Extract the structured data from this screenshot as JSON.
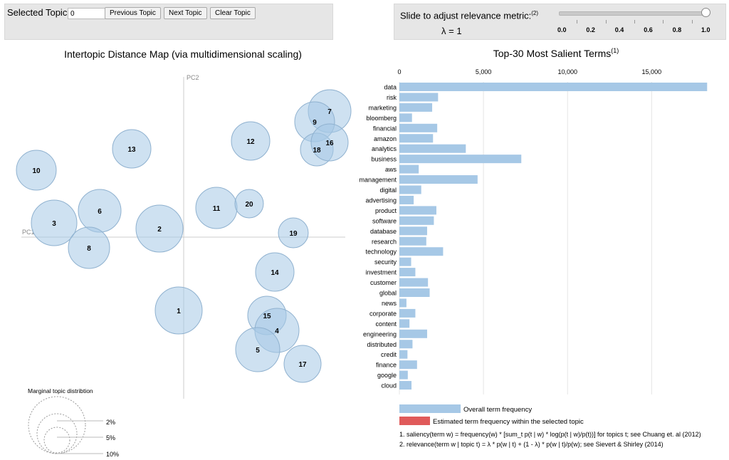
{
  "topic_controls": {
    "selected_topic_label": "Selected Topic:",
    "selected_topic_value": "0",
    "prev_label": "Previous Topic",
    "next_label": "Next Topic",
    "clear_label": "Clear Topic"
  },
  "relevance": {
    "label": "Slide to adjust relevance metric:",
    "label_sup": "(2)",
    "lambda_text": "λ = 1",
    "value": 1.0,
    "ticks": [
      "0.0",
      "0.2",
      "0.4",
      "0.6",
      "0.8",
      "1.0"
    ]
  },
  "map": {
    "title": "Intertopic Distance Map (via multidimensional scaling)",
    "pc1_label": "PC1",
    "pc2_label": "PC2",
    "topics": [
      "7",
      "9",
      "18",
      "16",
      "12",
      "13",
      "10",
      "6",
      "3",
      "8",
      "2",
      "11",
      "20",
      "19",
      "14",
      "1",
      "15",
      "4",
      "5",
      "17"
    ]
  },
  "marginal": {
    "title": "Marginal topic distribtion",
    "labels": [
      "2%",
      "5%",
      "10%"
    ]
  },
  "terms": {
    "title": "Top-30 Most Salient Terms",
    "title_sup": "(1)",
    "overall_legend": "Overall term frequency",
    "estimated_legend": "Estimated term frequency within the selected topic",
    "footnote1": "1. saliency(term w) = frequency(w) * [sum_t p(t | w) * log(p(t | w)/p(t))] for topics t; see Chuang et. al (2012)",
    "footnote2": "2. relevance(term w | topic t) = λ * p(w | t) + (1 - λ) * p(w | t)/p(w); see Sievert & Shirley (2014)",
    "colors": {
      "overall": "#a6c8e6",
      "estimated": "#e05a5a"
    }
  },
  "chart_data": {
    "type": "bar",
    "title": "Top-30 Most Salient Terms",
    "xlim": [
      0,
      18500
    ],
    "x_ticks": [
      "0",
      "5,000",
      "10,000",
      "15,000"
    ],
    "categories": [
      "data",
      "risk",
      "marketing",
      "bloomberg",
      "financial",
      "amazon",
      "analytics",
      "business",
      "aws",
      "management",
      "digital",
      "advertising",
      "product",
      "software",
      "database",
      "research",
      "technology",
      "security",
      "investment",
      "customer",
      "global",
      "news",
      "corporate",
      "content",
      "engineering",
      "distributed",
      "credit",
      "finance",
      "google",
      "cloud"
    ],
    "series": [
      {
        "name": "Overall term frequency",
        "values": [
          18300,
          2300,
          1950,
          750,
          2250,
          2000,
          3950,
          7250,
          1150,
          4650,
          1300,
          850,
          2200,
          2050,
          1650,
          1600,
          2600,
          700,
          950,
          1700,
          1800,
          420,
          950,
          600,
          1650,
          780,
          480,
          1050,
          500,
          720
        ]
      }
    ]
  }
}
